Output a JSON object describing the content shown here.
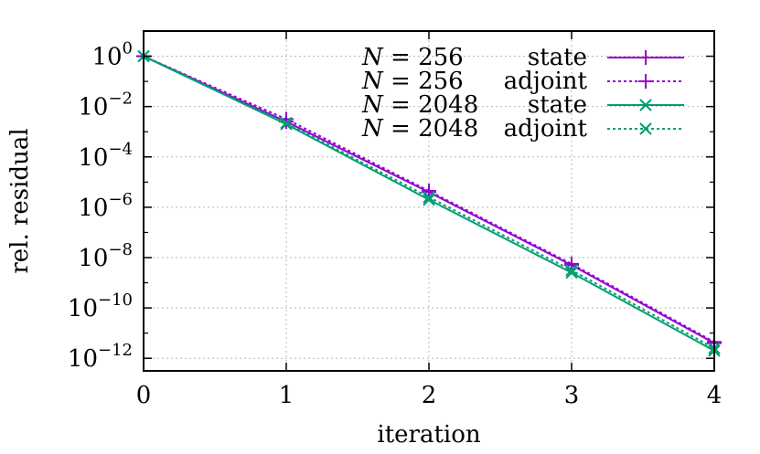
{
  "chart_data": {
    "type": "line",
    "title": "",
    "xlabel": "iteration",
    "ylabel": "rel. residual",
    "x": [
      0,
      1,
      2,
      3,
      4
    ],
    "xlim": [
      0,
      4
    ],
    "ylim_log10": [
      -12.5,
      1
    ],
    "y_scale": "log",
    "x_tick_labels": [
      "0",
      "1",
      "2",
      "3",
      "4"
    ],
    "y_ticks": [
      {
        "base": "10",
        "exp": "0",
        "value_log10": 0
      },
      {
        "base": "10",
        "exp": "−2",
        "value_log10": -2
      },
      {
        "base": "10",
        "exp": "−4",
        "value_log10": -4
      },
      {
        "base": "10",
        "exp": "−6",
        "value_log10": -6
      },
      {
        "base": "10",
        "exp": "−8",
        "value_log10": -8
      },
      {
        "base": "10",
        "exp": "−10",
        "value_log10": -10
      },
      {
        "base": "10",
        "exp": "−12",
        "value_log10": -12
      }
    ],
    "grid": true,
    "legend_position": "top-right",
    "series": [
      {
        "label_lhs": "N",
        "label_eq": "= 256",
        "label_kind": "state",
        "color": "#9400d3",
        "dash": "solid",
        "marker": "plus",
        "values_log10": [
          0,
          -2.6,
          -5.4,
          -8.3,
          -11.4
        ]
      },
      {
        "label_lhs": "N",
        "label_eq": "= 256",
        "label_kind": "adjoint",
        "color": "#9400d3",
        "dash": "dotted",
        "marker": "plus",
        "values_log10": [
          0,
          -2.5,
          -5.35,
          -8.25,
          -11.35
        ]
      },
      {
        "label_lhs": "N",
        "label_eq": "= 2048",
        "label_kind": "state",
        "color": "#009e73",
        "dash": "solid",
        "marker": "cross",
        "values_log10": [
          0,
          -2.7,
          -5.7,
          -8.6,
          -11.7
        ]
      },
      {
        "label_lhs": "N",
        "label_eq": "= 2048",
        "label_kind": "adjoint",
        "color": "#009e73",
        "dash": "dotted",
        "marker": "cross",
        "values_log10": [
          0,
          -2.65,
          -5.6,
          -8.5,
          -11.6
        ]
      }
    ]
  }
}
